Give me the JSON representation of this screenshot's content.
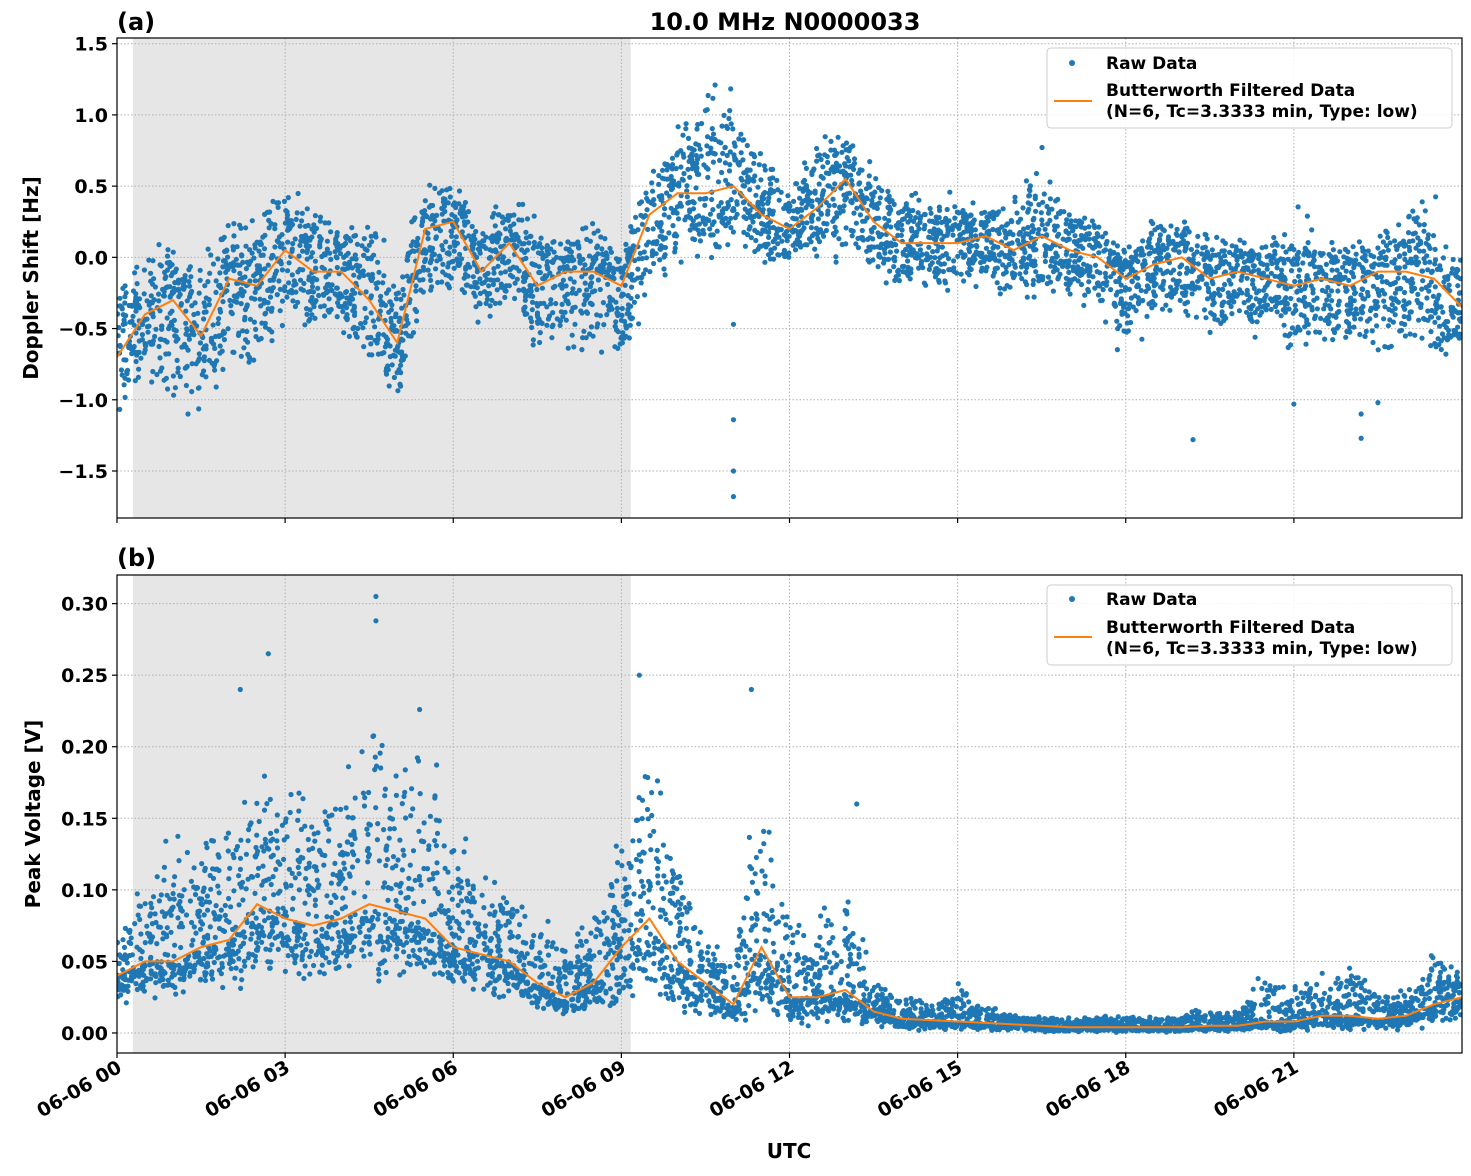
{
  "chart_data": [
    {
      "panel_label": "(a)",
      "title": "10.0 MHz N0000033",
      "type": "scatter",
      "xlabel": "",
      "ylabel": "Doppler Shift [Hz]",
      "xlim_hours_utc": [
        0,
        24
      ],
      "ylim": [
        -1.83,
        1.54
      ],
      "yticks": [
        -1.5,
        -1.0,
        -0.5,
        0.0,
        0.5,
        1.0,
        1.5
      ],
      "ytick_labels": [
        "−1.5",
        "−1.0",
        "−0.5",
        "0.0",
        "0.5",
        "1.0",
        "1.5"
      ],
      "grid": true,
      "shaded_interval_utc": [
        "06-06 00:17",
        "06-06 09:10"
      ],
      "legend_placement": "top-right",
      "legend": [
        "Raw Data",
        "Butterworth Filtered Data",
        "(N=6, Tc=3.3333 min, Type: low)"
      ],
      "x_hours_utc": [
        0,
        0.5,
        1,
        1.5,
        2,
        2.5,
        3,
        3.5,
        4,
        4.5,
        5,
        5.5,
        6,
        6.5,
        7,
        7.5,
        8,
        8.5,
        9,
        9.5,
        10,
        10.5,
        11,
        11.5,
        12,
        12.5,
        13,
        13.5,
        14,
        14.5,
        15,
        15.5,
        16,
        16.5,
        17,
        17.5,
        18,
        18.5,
        19,
        19.5,
        20,
        20.5,
        21,
        21.5,
        22,
        22.5,
        23,
        23.5,
        24
      ],
      "series": [
        {
          "name": "Butterworth Filtered Data",
          "kind": "line",
          "color": "#ff7f0e",
          "values": [
            -0.7,
            -0.4,
            -0.3,
            -0.55,
            -0.15,
            -0.2,
            0.05,
            -0.1,
            -0.1,
            -0.3,
            -0.6,
            0.2,
            0.25,
            -0.1,
            0.1,
            -0.2,
            -0.1,
            -0.1,
            -0.2,
            0.3,
            0.45,
            0.45,
            0.5,
            0.3,
            0.2,
            0.35,
            0.55,
            0.25,
            0.1,
            0.1,
            0.1,
            0.15,
            0.05,
            0.15,
            0.05,
            0.0,
            -0.15,
            -0.05,
            0.0,
            -0.15,
            -0.1,
            -0.15,
            -0.2,
            -0.15,
            -0.2,
            -0.1,
            -0.1,
            -0.15,
            -0.35
          ]
        },
        {
          "name": "Raw Data",
          "kind": "scatter",
          "color": "#1f77b4",
          "upper_envelope": [
            -0.1,
            0.1,
            0.25,
            0.1,
            0.4,
            0.35,
            0.6,
            0.4,
            0.35,
            0.4,
            0.0,
            0.6,
            0.6,
            0.4,
            0.5,
            0.4,
            0.2,
            0.3,
            0.1,
            0.65,
            1.0,
            1.3,
            1.3,
            0.8,
            0.6,
            1.05,
            1.0,
            0.7,
            0.5,
            0.5,
            0.5,
            0.4,
            0.45,
            0.85,
            0.4,
            0.3,
            0.15,
            0.3,
            0.3,
            0.2,
            0.3,
            0.2,
            0.4,
            0.2,
            0.15,
            0.3,
            0.45,
            0.5,
            0.1
          ],
          "lower_envelope": [
            -1.2,
            -0.9,
            -1.2,
            -1.2,
            -0.8,
            -0.9,
            -0.6,
            -0.7,
            -0.7,
            -0.9,
            -1.1,
            -0.5,
            -0.4,
            -0.6,
            -0.5,
            -0.7,
            -0.8,
            -0.8,
            -0.9,
            -0.3,
            -0.2,
            -0.1,
            -0.1,
            -0.1,
            -0.1,
            -0.1,
            -0.1,
            -0.2,
            -0.3,
            -0.3,
            -0.35,
            -0.3,
            -0.3,
            -0.4,
            -0.3,
            -0.5,
            -0.75,
            -0.5,
            -0.5,
            -0.65,
            -0.6,
            -0.65,
            -0.8,
            -0.7,
            -0.7,
            -0.8,
            -0.7,
            -0.85,
            -0.65
          ],
          "outliers": [
            [
              11.0,
              -1.68
            ],
            [
              11.0,
              -1.5
            ],
            [
              11.0,
              -1.14
            ],
            [
              11.0,
              -0.47
            ],
            [
              19.2,
              -1.28
            ],
            [
              22.2,
              -1.27
            ],
            [
              22.2,
              -1.1
            ],
            [
              21.0,
              -1.03
            ],
            [
              22.5,
              -1.02
            ]
          ]
        }
      ]
    },
    {
      "panel_label": "(b)",
      "type": "scatter",
      "xlabel": "UTC",
      "ylabel": "Peak Voltage [V]",
      "xlim_hours_utc": [
        0,
        24
      ],
      "ylim": [
        -0.014,
        0.32
      ],
      "yticks": [
        0.0,
        0.05,
        0.1,
        0.15,
        0.2,
        0.25,
        0.3
      ],
      "ytick_labels": [
        "0.00",
        "0.05",
        "0.10",
        "0.15",
        "0.20",
        "0.25",
        "0.30"
      ],
      "xticks_hours_utc": [
        0,
        3,
        6,
        9,
        12,
        15,
        18,
        21
      ],
      "xtick_labels": [
        "06-06 00",
        "06-06 03",
        "06-06 06",
        "06-06 09",
        "06-06 12",
        "06-06 15",
        "06-06 18",
        "06-06 21"
      ],
      "grid": true,
      "shaded_interval_utc": [
        "06-06 00:17",
        "06-06 09:10"
      ],
      "legend_placement": "top-right",
      "legend": [
        "Raw Data",
        "Butterworth Filtered Data",
        "(N=6, Tc=3.3333 min, Type: low)"
      ],
      "x_hours_utc": [
        0,
        0.5,
        1,
        1.5,
        2,
        2.5,
        3,
        3.5,
        4,
        4.5,
        5,
        5.5,
        6,
        6.5,
        7,
        7.5,
        8,
        8.5,
        9,
        9.5,
        10,
        10.5,
        11,
        11.5,
        12,
        12.5,
        13,
        13.5,
        14,
        14.5,
        15,
        15.5,
        16,
        16.5,
        17,
        17.5,
        18,
        18.5,
        19,
        19.5,
        20,
        20.5,
        21,
        21.5,
        22,
        22.5,
        23,
        23.5,
        24
      ],
      "series": [
        {
          "name": "Butterworth Filtered Data",
          "kind": "line",
          "color": "#ff7f0e",
          "values": [
            0.04,
            0.05,
            0.05,
            0.06,
            0.065,
            0.09,
            0.08,
            0.075,
            0.08,
            0.09,
            0.085,
            0.08,
            0.06,
            0.055,
            0.05,
            0.035,
            0.025,
            0.035,
            0.06,
            0.08,
            0.05,
            0.035,
            0.02,
            0.06,
            0.025,
            0.025,
            0.03,
            0.015,
            0.01,
            0.009,
            0.008,
            0.007,
            0.006,
            0.005,
            0.004,
            0.004,
            0.004,
            0.004,
            0.004,
            0.005,
            0.005,
            0.008,
            0.008,
            0.012,
            0.012,
            0.01,
            0.012,
            0.02,
            0.025
          ]
        },
        {
          "name": "Raw Data",
          "kind": "scatter",
          "color": "#1f77b4",
          "upper_envelope": [
            0.08,
            0.12,
            0.15,
            0.14,
            0.17,
            0.2,
            0.19,
            0.19,
            0.2,
            0.3,
            0.2,
            0.22,
            0.17,
            0.14,
            0.11,
            0.09,
            0.07,
            0.11,
            0.15,
            0.24,
            0.14,
            0.08,
            0.05,
            0.23,
            0.09,
            0.09,
            0.13,
            0.04,
            0.03,
            0.025,
            0.04,
            0.02,
            0.015,
            0.012,
            0.012,
            0.015,
            0.015,
            0.012,
            0.015,
            0.02,
            0.02,
            0.05,
            0.035,
            0.045,
            0.06,
            0.03,
            0.035,
            0.06,
            0.05
          ],
          "lower_envelope": [
            0.015,
            0.02,
            0.02,
            0.025,
            0.025,
            0.03,
            0.03,
            0.03,
            0.03,
            0.035,
            0.03,
            0.03,
            0.025,
            0.02,
            0.02,
            0.012,
            0.008,
            0.008,
            0.015,
            0.02,
            0.01,
            0.005,
            0.003,
            0.003,
            0.003,
            0.003,
            0.003,
            0.002,
            0.001,
            0.001,
            0.001,
            0.001,
            0.0,
            0.0,
            0.0,
            0.0,
            0.0,
            0.0,
            0.0,
            0.0,
            0.0,
            0.0,
            0.0,
            0.001,
            0.001,
            0.001,
            0.002,
            0.003,
            0.005
          ],
          "outliers": [
            [
              4.62,
              0.305
            ],
            [
              4.62,
              0.288
            ],
            [
              2.7,
              0.265
            ],
            [
              9.32,
              0.25
            ],
            [
              11.32,
              0.24
            ],
            [
              13.2,
              0.16
            ],
            [
              2.2,
              0.24
            ],
            [
              5.4,
              0.226
            ]
          ]
        }
      ]
    }
  ],
  "colors": {
    "raw": "#1f77b4",
    "filtered": "#ff7f0e",
    "shade": "#e6e6e6",
    "grid": "#b0b0b0"
  }
}
